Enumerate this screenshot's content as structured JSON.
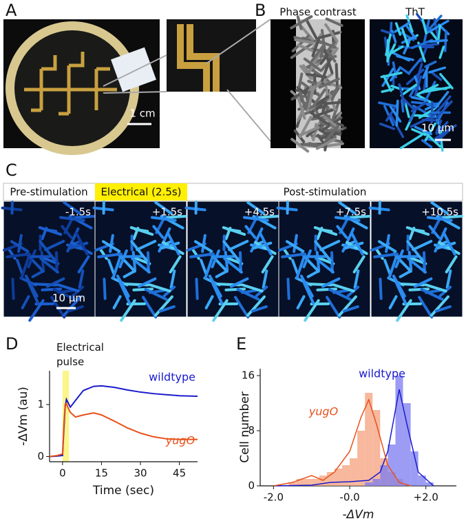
{
  "panels": {
    "A": {
      "letter": "A",
      "scale": "1 cm"
    },
    "B": {
      "letter": "B",
      "phase_title": "Phase contrast",
      "tht_title": "ThT",
      "scale": "10 µm"
    },
    "C": {
      "letter": "C",
      "phases": [
        "Pre-stimulation",
        "Electrical (2.5s)",
        "Post-stimulation"
      ],
      "times": [
        "-1.5s",
        "+1.5s",
        "+4.5s",
        "+7.5s",
        "+10.5s"
      ],
      "scale": "10 µm"
    },
    "D": {
      "letter": "D"
    },
    "E": {
      "letter": "E"
    }
  },
  "chart_data": [
    {
      "type": "line",
      "annotation": "Electrical pulse",
      "pulse_span": [
        0,
        2.5
      ],
      "pulse_color": "#fbf58a",
      "xlabel": "Time (sec)",
      "ylabel": "-ΔVm (au)",
      "xlim": [
        -5,
        52
      ],
      "ylim": [
        -0.1,
        1.65
      ],
      "xticks": [
        0,
        15,
        30,
        45
      ],
      "yticks": [
        0,
        1
      ],
      "x": [
        -5,
        -2,
        0,
        0.5,
        1,
        1.5,
        2,
        3,
        5,
        8,
        12,
        15,
        20,
        25,
        30,
        35,
        40,
        45,
        52
      ],
      "series": [
        {
          "name": "wildtype",
          "color": "#1a1acc",
          "values": [
            0,
            0.01,
            0.02,
            0.5,
            0.95,
            1.1,
            1.05,
            0.95,
            1.08,
            1.27,
            1.35,
            1.36,
            1.33,
            1.28,
            1.24,
            1.21,
            1.19,
            1.17,
            1.16
          ]
        },
        {
          "name": "yugO",
          "color": "#e8501a",
          "values": [
            0,
            0.02,
            0.05,
            0.6,
            1.0,
            1.02,
            0.95,
            0.85,
            0.76,
            0.8,
            0.84,
            0.8,
            0.68,
            0.55,
            0.45,
            0.38,
            0.34,
            0.33,
            0.33
          ]
        }
      ]
    },
    {
      "type": "histogram",
      "xlabel": "-ΔVm",
      "ylabel": "Cell number",
      "xlim": [
        -2.35,
        2.8
      ],
      "ylim": [
        0,
        17
      ],
      "xticks": [
        {
          "value": -2,
          "label": "-2.0"
        },
        {
          "value": 0,
          "label": "-0.0"
        },
        {
          "value": 2,
          "label": "+2.0"
        }
      ],
      "yticks": [
        0,
        8,
        16
      ],
      "series": [
        {
          "name": "wildtype",
          "color": "#1a1acc",
          "fill": "#7b7bf0",
          "bins": [
            0.4,
            0.6,
            0.8,
            1.0,
            1.2,
            1.4,
            1.6,
            1.8,
            2.0,
            2.2
          ],
          "counts": [
            0.5,
            1,
            3,
            6,
            16,
            12,
            5,
            1.5,
            0.5
          ],
          "kde_x": [
            -2,
            -1,
            -0.5,
            0,
            0.5,
            0.8,
            1.0,
            1.2,
            1.3,
            1.5,
            1.8,
            2.2
          ],
          "kde_values": [
            0,
            0.1,
            0.5,
            0.6,
            0.8,
            2,
            5,
            11,
            14,
            9,
            2,
            0
          ]
        },
        {
          "name": "yugO",
          "color": "#e8501a",
          "fill": "#f4a07e",
          "bins": [
            -1.6,
            -1.4,
            -1.2,
            -1.0,
            -0.8,
            -0.6,
            -0.4,
            -0.2,
            0.0,
            0.2,
            0.4,
            0.6,
            0.8,
            1.0,
            1.2,
            1.4
          ],
          "counts": [
            0.5,
            1,
            1,
            1,
            1.5,
            2,
            2.5,
            3,
            4,
            8,
            13.5,
            11,
            4,
            2,
            1
          ],
          "kde_x": [
            -2,
            -1.5,
            -1,
            -0.7,
            -0.4,
            0,
            0.3,
            0.5,
            0.7,
            1.0,
            1.3,
            1.6
          ],
          "kde_values": [
            0,
            0.5,
            1.5,
            0.8,
            2,
            5,
            10,
            12.5,
            9,
            3,
            0.5,
            0
          ]
        }
      ]
    }
  ]
}
